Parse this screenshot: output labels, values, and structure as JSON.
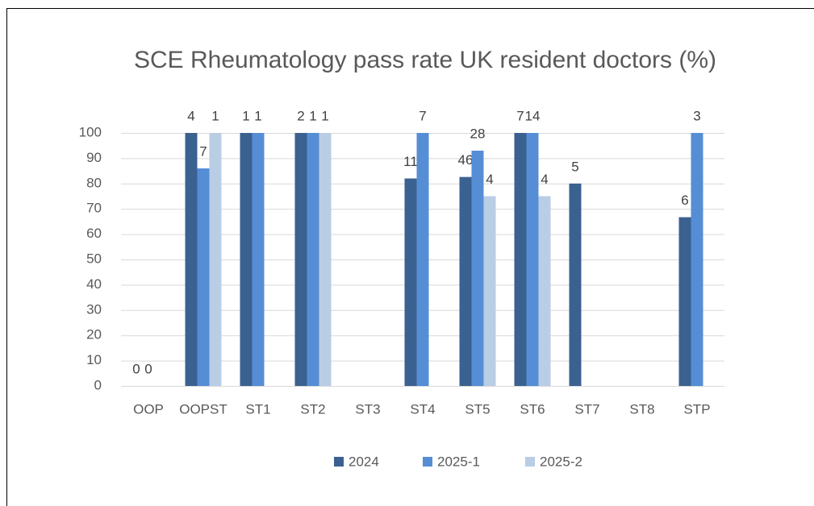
{
  "chart_data": {
    "type": "bar",
    "title": "SCE Rheumatology pass rate UK resident doctors (%)",
    "categories": [
      "OOP",
      "OOPST",
      "ST1",
      "ST2",
      "ST3",
      "ST4",
      "ST5",
      "ST6",
      "ST7",
      "ST8",
      "STP"
    ],
    "series": [
      {
        "name": "2024",
        "color": "#3a6190",
        "values": [
          0,
          100,
          100,
          100,
          null,
          82,
          82.6,
          100,
          80,
          null,
          66.7
        ],
        "data_labels": [
          0,
          4,
          1,
          2,
          null,
          11,
          46,
          7,
          5,
          null,
          6
        ]
      },
      {
        "name": "2025-1",
        "color": "#558ed5",
        "values": [
          0,
          86,
          100,
          100,
          null,
          100,
          93,
          100,
          null,
          null,
          100
        ],
        "data_labels": [
          0,
          7,
          1,
          1,
          null,
          7,
          28,
          14,
          null,
          null,
          3
        ]
      },
      {
        "name": "2025-2",
        "color": "#b9cde5",
        "values": [
          null,
          100,
          null,
          100,
          null,
          null,
          75,
          75,
          null,
          null,
          null
        ],
        "data_labels": [
          null,
          1,
          null,
          1,
          null,
          null,
          4,
          4,
          null,
          null,
          null
        ]
      }
    ],
    "ylim": [
      0,
      100
    ],
    "yticks": [
      0,
      10,
      20,
      30,
      40,
      50,
      60,
      70,
      80,
      90,
      100
    ],
    "grid": true,
    "legend": "bottom"
  }
}
